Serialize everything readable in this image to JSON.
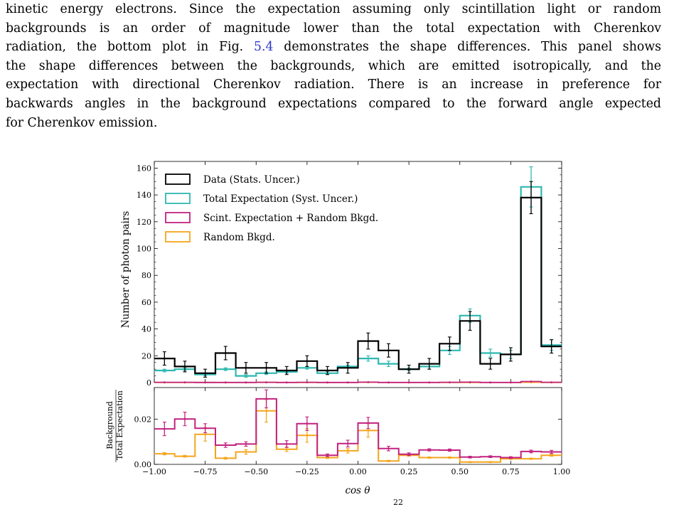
{
  "text": {
    "lines": [
      {
        "a": "kinetic energy electrons. Since the expectation assuming only scintillation light or random",
        "ref": "",
        "b": ""
      },
      {
        "a": "backgrounds is an order of magnitude lower than the total expectation with Cherenkov",
        "ref": "",
        "b": ""
      },
      {
        "a": "radiation, the bottom plot in Fig. ",
        "ref": "5.4",
        "b": " demonstrates the shape differences. This panel shows"
      },
      {
        "a": "the shape differences between the backgrounds, which are emitted isotropically, and the",
        "ref": "",
        "b": ""
      },
      {
        "a": "expectation with directional Cherenkov radiation. There is an increase in preference for",
        "ref": "",
        "b": ""
      },
      {
        "a": "backwards angles in the background expectations compared to the forward angle expected",
        "ref": "",
        "b": ""
      },
      {
        "a": "for Cherenkov emission.",
        "ref": "",
        "b": ""
      }
    ],
    "page_number": "22"
  },
  "chart_data": [
    {
      "type": "line",
      "xlabel": "cos θ",
      "ylabel": "Number of photon pairs",
      "xlim": [
        -1.0,
        1.0
      ],
      "ylim": [
        0,
        165
      ],
      "yticks": [
        0,
        20,
        40,
        60,
        80,
        100,
        120,
        140,
        160
      ],
      "bin_edges": [
        -1.0,
        -0.9,
        -0.8,
        -0.7,
        -0.6,
        -0.5,
        -0.4,
        -0.3,
        -0.2,
        -0.1,
        0.0,
        0.1,
        0.2,
        0.3,
        0.4,
        0.5,
        0.6,
        0.7,
        0.8,
        0.9,
        1.0
      ],
      "legend_position": "top-left",
      "series": [
        {
          "name": "Data (Stats. Uncer.)",
          "color": "#000000",
          "values": [
            18,
            12,
            7,
            22,
            11,
            11,
            9,
            16,
            9,
            11,
            31,
            24,
            10,
            14,
            29,
            46,
            14,
            21,
            138,
            27
          ],
          "errors": [
            5,
            4,
            3,
            5,
            4,
            4,
            3,
            4,
            3,
            4,
            6,
            5,
            3,
            4,
            5,
            7,
            4,
            5,
            12,
            5
          ]
        },
        {
          "name": "Total Expectation (Syst. Uncer.)",
          "color": "#2eb8b0",
          "values": [
            9,
            10,
            6,
            10,
            5,
            7,
            8,
            11,
            7,
            12,
            18,
            14,
            10,
            12,
            24,
            50,
            22,
            21,
            146,
            28
          ],
          "errors": [
            1,
            1,
            1,
            1,
            1,
            1,
            1,
            1,
            1,
            1,
            2,
            2,
            1,
            2,
            3,
            5,
            3,
            3,
            15,
            4
          ]
        },
        {
          "name": "Scint. Expectation + Random Bkgd.",
          "color": "#c2227f",
          "values": [
            0.2,
            0.2,
            0.1,
            0.1,
            0.1,
            0.2,
            0.1,
            0.2,
            0.1,
            0.1,
            0.3,
            0.1,
            0.1,
            0.1,
            0.2,
            0.3,
            0.1,
            0.1,
            0.8,
            0.2
          ],
          "errors": [
            0,
            0,
            0,
            0,
            0,
            0,
            0,
            0,
            0,
            0,
            0,
            0,
            0,
            0,
            0,
            0,
            0,
            0,
            0,
            0
          ]
        },
        {
          "name": "Random Bkgd.",
          "color": "#f5a51c",
          "values": [
            0.05,
            0.04,
            0.08,
            0.03,
            0.03,
            0.15,
            0.05,
            0.1,
            0.03,
            0.05,
            0.2,
            0.03,
            0.04,
            0.04,
            0.08,
            0.1,
            0.03,
            0.06,
            0.2,
            0.1
          ],
          "errors": [
            0,
            0,
            0,
            0,
            0,
            0,
            0,
            0,
            0,
            0,
            0,
            0,
            0,
            0,
            0,
            0,
            0,
            0,
            0,
            0
          ]
        }
      ]
    },
    {
      "type": "line",
      "xlabel": "cos θ",
      "ylabel_numerator": "Background",
      "ylabel_denominator": "Total Expectation",
      "xlim": [
        -1.0,
        1.0
      ],
      "ylim": [
        0,
        0.034
      ],
      "yticks": [
        0.0,
        0.02
      ],
      "ytick_labels": [
        "0.00",
        "0.02"
      ],
      "xticks": [
        -1.0,
        -0.75,
        -0.5,
        -0.25,
        0.0,
        0.25,
        0.5,
        0.75,
        1.0
      ],
      "xtick_labels": [
        "−1.00",
        "−0.75",
        "−0.50",
        "−0.25",
        "0.00",
        "0.25",
        "0.50",
        "0.75",
        "1.00"
      ],
      "bin_edges": [
        -1.0,
        -0.9,
        -0.8,
        -0.7,
        -0.6,
        -0.5,
        -0.4,
        -0.3,
        -0.2,
        -0.1,
        0.0,
        0.1,
        0.2,
        0.3,
        0.4,
        0.5,
        0.6,
        0.7,
        0.8,
        0.9,
        1.0
      ],
      "series": [
        {
          "name": "Scint. Expectation + Random Bkgd.",
          "color": "#c2227f",
          "values": [
            0.0157,
            0.0201,
            0.016,
            0.0085,
            0.009,
            0.029,
            0.009,
            0.018,
            0.004,
            0.0092,
            0.0183,
            0.007,
            0.0045,
            0.0064,
            0.0063,
            0.0032,
            0.0034,
            0.003,
            0.0057,
            0.0055
          ],
          "errors": [
            0.003,
            0.003,
            0.002,
            0.001,
            0.001,
            0.004,
            0.0015,
            0.003,
            0.0006,
            0.0015,
            0.0025,
            0.001,
            0.0006,
            0.0005,
            0.0005,
            0.0004,
            0.0004,
            0.0004,
            0.0006,
            0.0007
          ]
        },
        {
          "name": "Random Bkgd.",
          "color": "#f5a51c",
          "values": [
            0.0047,
            0.0036,
            0.0133,
            0.0027,
            0.0055,
            0.0237,
            0.0067,
            0.0128,
            0.003,
            0.006,
            0.015,
            0.0015,
            0.004,
            0.003,
            0.003,
            0.001,
            0.001,
            0.0025,
            0.0025,
            0.004
          ],
          "errors": [
            0.0005,
            0.0004,
            0.003,
            0.0004,
            0.001,
            0.005,
            0.001,
            0.003,
            0.0004,
            0.001,
            0.003,
            0.0003,
            0.0004,
            0.0003,
            0.0003,
            0.0002,
            0.0002,
            0.0003,
            0.0003,
            0.0004
          ]
        }
      ]
    }
  ]
}
